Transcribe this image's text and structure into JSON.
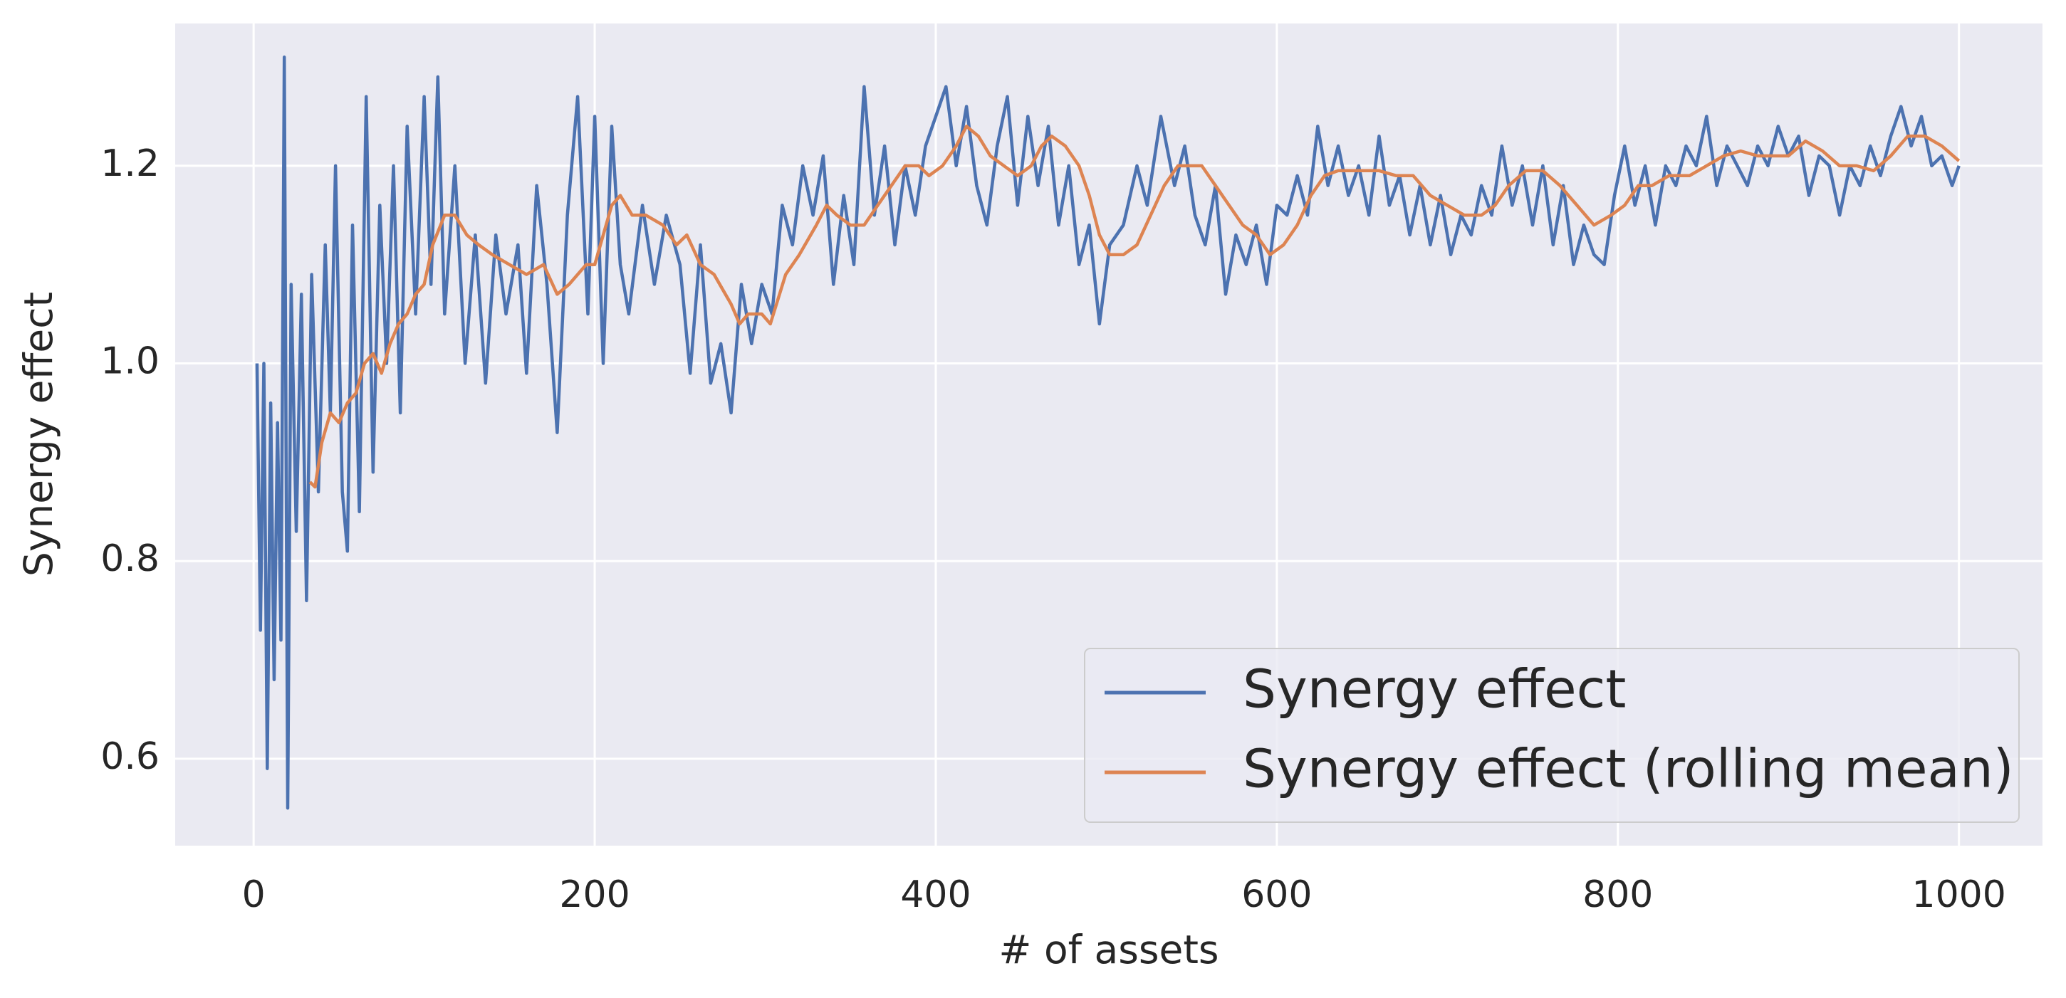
{
  "chart_data": {
    "type": "line",
    "xlabel": "# of assets",
    "ylabel": "Synergy effect",
    "xlim": [
      -46,
      1049
    ],
    "ylim": [
      0.512,
      1.344
    ],
    "xticks": [
      0,
      200,
      400,
      600,
      800,
      1000
    ],
    "yticks": [
      0.6,
      0.8,
      {
        "value": 1.0,
        "label": "1.0"
      },
      1.2
    ],
    "grid": true,
    "legend": "lower right",
    "series": [
      {
        "name": "Synergy effect",
        "color": "#4c72b0",
        "x": [
          2,
          4,
          6,
          8,
          10,
          12,
          14,
          16,
          18,
          20,
          22,
          25,
          28,
          31,
          34,
          38,
          42,
          45,
          48,
          52,
          55,
          58,
          62,
          66,
          70,
          74,
          78,
          82,
          86,
          90,
          95,
          100,
          104,
          108,
          112,
          118,
          124,
          130,
          136,
          142,
          148,
          155,
          160,
          166,
          172,
          178,
          184,
          190,
          196,
          200,
          205,
          210,
          215,
          220,
          228,
          235,
          242,
          250,
          256,
          262,
          268,
          274,
          280,
          286,
          292,
          298,
          304,
          310,
          316,
          322,
          328,
          334,
          340,
          346,
          352,
          358,
          364,
          370,
          376,
          382,
          388,
          394,
          400,
          406,
          412,
          418,
          424,
          430,
          436,
          442,
          448,
          454,
          460,
          466,
          472,
          478,
          484,
          490,
          496,
          502,
          510,
          518,
          524,
          532,
          540,
          546,
          552,
          558,
          564,
          570,
          576,
          582,
          588,
          594,
          600,
          606,
          612,
          618,
          624,
          630,
          636,
          642,
          648,
          654,
          660,
          666,
          672,
          678,
          684,
          690,
          696,
          702,
          708,
          714,
          720,
          726,
          732,
          738,
          744,
          750,
          756,
          762,
          768,
          774,
          780,
          786,
          792,
          798,
          804,
          810,
          816,
          822,
          828,
          834,
          840,
          846,
          852,
          858,
          864,
          870,
          876,
          882,
          888,
          894,
          900,
          906,
          912,
          918,
          924,
          930,
          936,
          942,
          948,
          954,
          960,
          966,
          972,
          978,
          984,
          990,
          996,
          1000
        ],
        "values": [
          1.0,
          0.73,
          1.0,
          0.59,
          0.96,
          0.68,
          0.94,
          0.72,
          1.31,
          0.55,
          1.08,
          0.83,
          1.07,
          0.76,
          1.09,
          0.87,
          1.12,
          0.95,
          1.2,
          0.87,
          0.81,
          1.14,
          0.85,
          1.27,
          0.89,
          1.16,
          1.0,
          1.2,
          0.95,
          1.24,
          1.05,
          1.27,
          1.08,
          1.29,
          1.05,
          1.2,
          1.0,
          1.13,
          0.98,
          1.13,
          1.05,
          1.12,
          0.99,
          1.18,
          1.08,
          0.93,
          1.15,
          1.27,
          1.05,
          1.25,
          1.0,
          1.24,
          1.1,
          1.05,
          1.16,
          1.08,
          1.15,
          1.1,
          0.99,
          1.12,
          0.98,
          1.02,
          0.95,
          1.08,
          1.02,
          1.08,
          1.05,
          1.16,
          1.12,
          1.2,
          1.15,
          1.21,
          1.08,
          1.17,
          1.1,
          1.28,
          1.15,
          1.22,
          1.12,
          1.2,
          1.15,
          1.22,
          1.25,
          1.28,
          1.2,
          1.26,
          1.18,
          1.14,
          1.22,
          1.27,
          1.16,
          1.25,
          1.18,
          1.24,
          1.14,
          1.2,
          1.1,
          1.14,
          1.04,
          1.12,
          1.14,
          1.2,
          1.16,
          1.25,
          1.18,
          1.22,
          1.15,
          1.12,
          1.18,
          1.07,
          1.13,
          1.1,
          1.14,
          1.08,
          1.16,
          1.15,
          1.19,
          1.15,
          1.24,
          1.18,
          1.22,
          1.17,
          1.2,
          1.15,
          1.23,
          1.16,
          1.19,
          1.13,
          1.18,
          1.12,
          1.17,
          1.11,
          1.15,
          1.13,
          1.18,
          1.15,
          1.22,
          1.16,
          1.2,
          1.14,
          1.2,
          1.12,
          1.18,
          1.1,
          1.14,
          1.11,
          1.1,
          1.17,
          1.22,
          1.16,
          1.2,
          1.14,
          1.2,
          1.18,
          1.22,
          1.2,
          1.25,
          1.18,
          1.22,
          1.2,
          1.18,
          1.22,
          1.2,
          1.24,
          1.21,
          1.23,
          1.17,
          1.21,
          1.2,
          1.15,
          1.2,
          1.18,
          1.22,
          1.19,
          1.23,
          1.26,
          1.22,
          1.25,
          1.2,
          1.21,
          1.18,
          1.2
        ]
      },
      {
        "name": "Synergy effect (rolling mean)",
        "color": "#dd8452",
        "x": [
          33,
          36,
          40,
          45,
          50,
          55,
          60,
          65,
          70,
          75,
          80,
          85,
          90,
          95,
          100,
          105,
          112,
          118,
          125,
          132,
          140,
          150,
          160,
          170,
          178,
          185,
          195,
          200,
          210,
          215,
          222,
          230,
          240,
          248,
          254,
          262,
          270,
          280,
          285,
          290,
          298,
          303,
          312,
          320,
          330,
          336,
          342,
          350,
          358,
          366,
          374,
          382,
          390,
          396,
          404,
          412,
          418,
          425,
          432,
          440,
          448,
          456,
          462,
          468,
          476,
          484,
          490,
          496,
          502,
          510,
          518,
          526,
          534,
          542,
          548,
          556,
          564,
          572,
          580,
          588,
          596,
          604,
          612,
          620,
          628,
          636,
          648,
          660,
          670,
          680,
          690,
          700,
          710,
          720,
          728,
          736,
          746,
          756,
          766,
          776,
          786,
          796,
          804,
          812,
          820,
          830,
          842,
          852,
          862,
          872,
          882,
          892,
          900,
          910,
          920,
          930,
          940,
          950,
          960,
          970,
          980,
          990,
          1000
        ],
        "values": [
          0.88,
          0.875,
          0.92,
          0.95,
          0.94,
          0.96,
          0.97,
          1.0,
          1.01,
          0.99,
          1.02,
          1.04,
          1.05,
          1.07,
          1.08,
          1.12,
          1.15,
          1.15,
          1.13,
          1.12,
          1.11,
          1.1,
          1.09,
          1.1,
          1.07,
          1.08,
          1.1,
          1.1,
          1.16,
          1.17,
          1.15,
          1.15,
          1.14,
          1.12,
          1.13,
          1.1,
          1.09,
          1.06,
          1.04,
          1.05,
          1.05,
          1.04,
          1.09,
          1.11,
          1.14,
          1.16,
          1.15,
          1.14,
          1.14,
          1.16,
          1.18,
          1.2,
          1.2,
          1.19,
          1.2,
          1.22,
          1.24,
          1.23,
          1.21,
          1.2,
          1.19,
          1.2,
          1.22,
          1.23,
          1.22,
          1.2,
          1.17,
          1.13,
          1.11,
          1.11,
          1.12,
          1.15,
          1.18,
          1.2,
          1.2,
          1.2,
          1.18,
          1.16,
          1.14,
          1.13,
          1.11,
          1.12,
          1.14,
          1.17,
          1.19,
          1.195,
          1.195,
          1.195,
          1.19,
          1.19,
          1.17,
          1.16,
          1.15,
          1.15,
          1.16,
          1.18,
          1.195,
          1.195,
          1.18,
          1.16,
          1.14,
          1.15,
          1.16,
          1.18,
          1.18,
          1.19,
          1.19,
          1.2,
          1.21,
          1.215,
          1.21,
          1.21,
          1.21,
          1.225,
          1.215,
          1.2,
          1.2,
          1.195,
          1.21,
          1.23,
          1.23,
          1.22,
          1.205
        ]
      }
    ]
  }
}
